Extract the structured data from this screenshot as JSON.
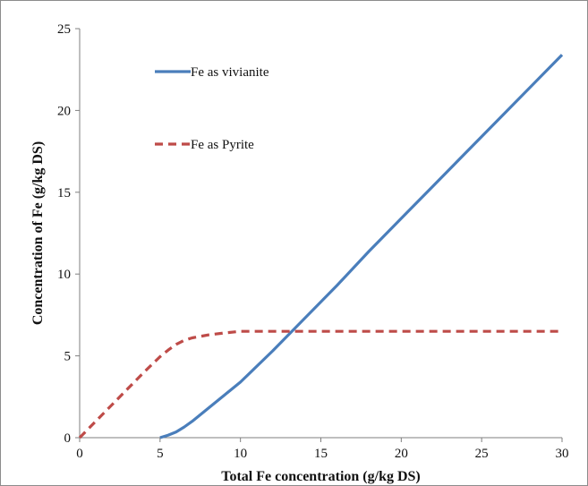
{
  "chart_data": {
    "type": "line",
    "title": "",
    "xlabel": "Total Fe concentration (g/kg DS)",
    "ylabel": "Concentration of Fe (g/kg DS)",
    "xlim": [
      0,
      30
    ],
    "ylim": [
      0,
      25
    ],
    "xticks": [
      0,
      5,
      10,
      15,
      20,
      25,
      30
    ],
    "yticks": [
      0,
      5,
      10,
      15,
      20,
      25
    ],
    "grid": false,
    "legend_position": "top-left",
    "series": [
      {
        "name": "Fe as vivianite",
        "color": "#4a7ebb",
        "line_style": "solid",
        "x": [
          5,
          5.5,
          6,
          6.5,
          7,
          8,
          9,
          10,
          12,
          14,
          16,
          18,
          20,
          22,
          24,
          26,
          28,
          30
        ],
        "y": [
          0,
          0.15,
          0.35,
          0.65,
          1.0,
          1.8,
          2.6,
          3.4,
          5.3,
          7.3,
          9.3,
          11.4,
          13.4,
          15.4,
          17.4,
          19.4,
          21.4,
          23.4
        ]
      },
      {
        "name": "Fe as Pyrite",
        "color": "#be4b48",
        "line_style": "dashed",
        "x": [
          0,
          1,
          2,
          3,
          4,
          5,
          5.5,
          6,
          6.5,
          7,
          8,
          9,
          10,
          15,
          20,
          25,
          30
        ],
        "y": [
          0,
          1.0,
          2.0,
          3.0,
          4.0,
          4.95,
          5.35,
          5.7,
          5.95,
          6.1,
          6.28,
          6.4,
          6.5,
          6.5,
          6.5,
          6.5,
          6.5
        ]
      }
    ]
  }
}
